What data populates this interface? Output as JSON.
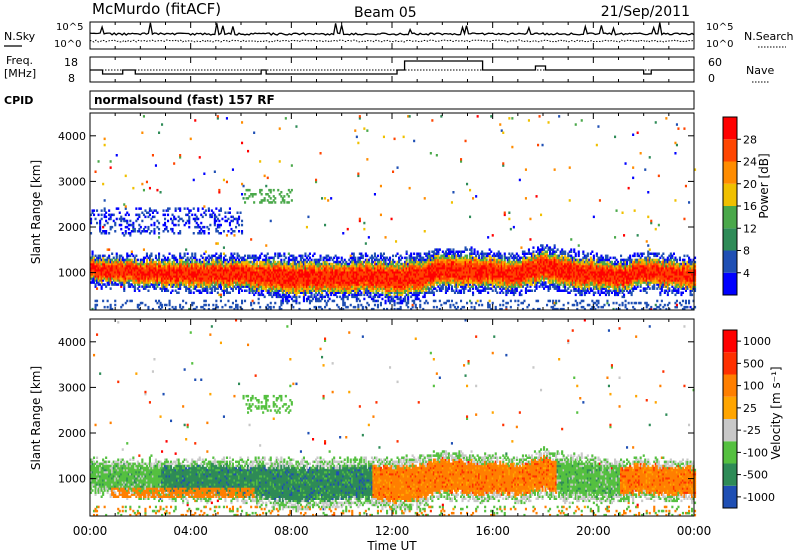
{
  "header": {
    "station": "McMurdo (fitACF)",
    "beam": "Beam 05",
    "date": "21/Sep/2011"
  },
  "noise_panel": {
    "left_label": "N.Sky",
    "right_label": "N.Search",
    "tick_high": "10^5",
    "tick_low": "10^0"
  },
  "freq_panel": {
    "left_label_line1": "Freq.",
    "left_label_line2": "[MHz]",
    "left_ticks": [
      "18",
      "8"
    ],
    "right_label": "Nave",
    "right_ticks": [
      "60",
      "0"
    ]
  },
  "cpid": {
    "label": "CPID",
    "value": "normalsound (fast) 157 RF"
  },
  "x_axis": {
    "label": "Time UT",
    "ticks": [
      "00:00",
      "04:00",
      "08:00",
      "12:00",
      "16:00",
      "20:00",
      "00:00"
    ]
  },
  "colors": {
    "power": [
      "#0000ff",
      "#1f4fb4",
      "#2e8b57",
      "#4aa84a",
      "#f0c000",
      "#ff8c00",
      "#ff4500",
      "#ff0000"
    ],
    "velocity": [
      "#1f4fb4",
      "#2e8b57",
      "#55c040",
      "#c8c8c8",
      "#ffa500",
      "#ff7f00",
      "#ff3000",
      "#ff0000"
    ]
  },
  "chart_data": [
    {
      "type": "heatmap",
      "title": "",
      "xlabel": "Time UT",
      "ylabel": "Slant Range [km]",
      "xlim": [
        0,
        24
      ],
      "ylim": [
        180,
        4500
      ],
      "yticks": [
        1000,
        2000,
        3000,
        4000
      ],
      "colorbar_label": "Power [dB]",
      "colorbar_ticks": [
        "4",
        "8",
        "12",
        "16",
        "20",
        "24",
        "28"
      ],
      "colorbar_range": [
        0,
        32
      ],
      "band": {
        "x": [
          0,
          1,
          2,
          3,
          4,
          5,
          6,
          7,
          8,
          9,
          10,
          11,
          12,
          13,
          14,
          15,
          16,
          17,
          18,
          19,
          20,
          21,
          22,
          23,
          24
        ],
        "center_km": [
          1050,
          1000,
          980,
          960,
          960,
          950,
          950,
          900,
          850,
          880,
          900,
          900,
          850,
          900,
          1050,
          1000,
          1000,
          950,
          1100,
          1000,
          950,
          900,
          1000,
          950,
          900
        ],
        "halfwidth_km": [
          220,
          230,
          240,
          250,
          260,
          260,
          260,
          300,
          320,
          300,
          300,
          300,
          330,
          320,
          300,
          300,
          280,
          280,
          300,
          300,
          280,
          260,
          260,
          260,
          260
        ]
      }
    },
    {
      "type": "heatmap",
      "title": "",
      "xlabel": "Time UT",
      "ylabel": "Slant Range [km]",
      "xlim": [
        0,
        24
      ],
      "ylim": [
        180,
        4500
      ],
      "yticks": [
        1000,
        2000,
        3000,
        4000
      ],
      "colorbar_label": "Velocity [m s⁻¹]",
      "colorbar_ticks": [
        "1000",
        "500",
        "100",
        "25",
        "-25",
        "-100",
        "-500",
        "-1000"
      ],
      "regions": [
        {
          "t0": 0.0,
          "t1": 2.8,
          "velocity": "green"
        },
        {
          "t0": 2.8,
          "t1": 8.0,
          "velocity": "dark-green"
        },
        {
          "t0": 8.0,
          "t1": 11.2,
          "velocity": "dark-green"
        },
        {
          "t0": 11.2,
          "t1": 18.5,
          "velocity": "orange"
        },
        {
          "t0": 18.5,
          "t1": 21.0,
          "velocity": "green"
        },
        {
          "t0": 21.0,
          "t1": 24.0,
          "velocity": "orange"
        }
      ]
    }
  ]
}
